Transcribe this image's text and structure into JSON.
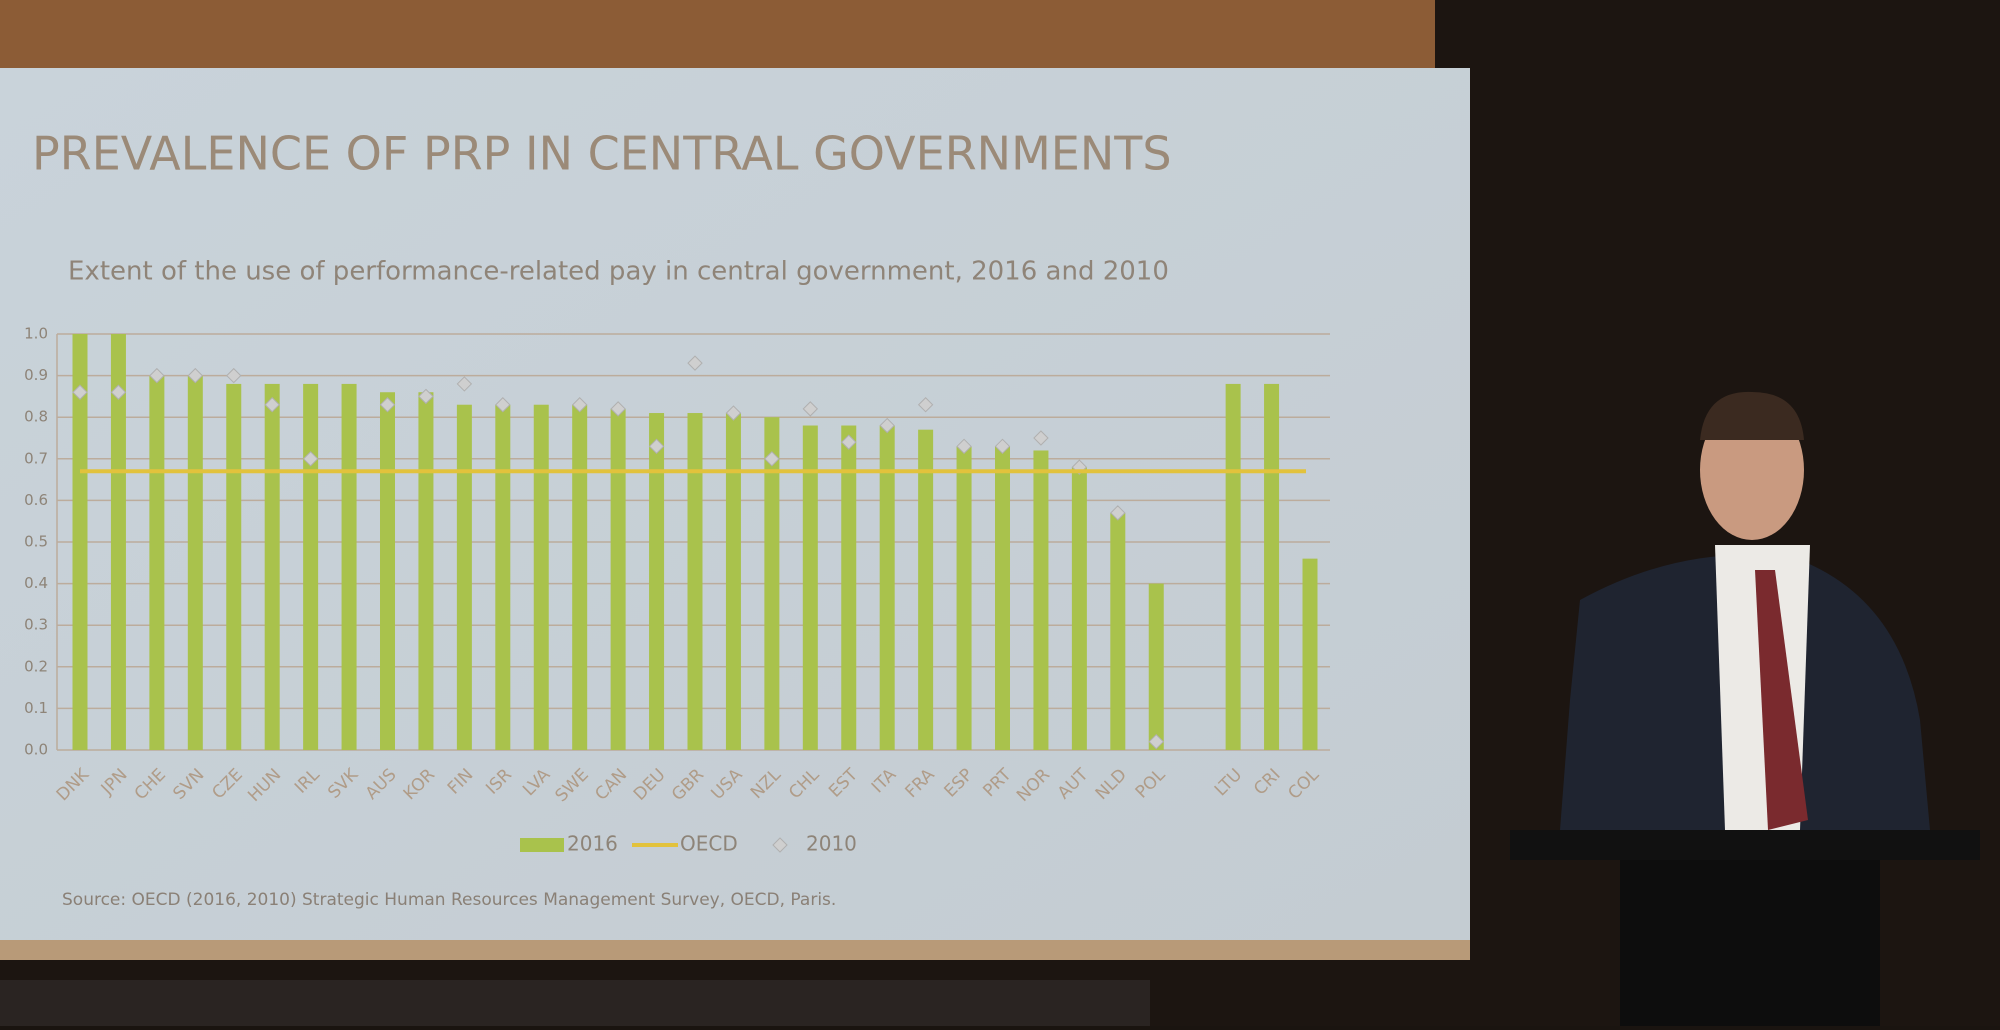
{
  "chart_data": {
    "type": "bar",
    "title": "PREVALENCE OF PRP IN CENTRAL GOVERNMENTS",
    "subtitle": "Extent of the use of performance-related pay in central government, 2016 and 2010",
    "source": "Source: OECD (2016, 2010) Strategic Human Resources Management Survey, OECD, Paris.",
    "categories": [
      "DNK",
      "JPN",
      "CHE",
      "SVN",
      "CZE",
      "HUN",
      "IRL",
      "SVK",
      "AUS",
      "KOR",
      "FIN",
      "ISR",
      "LVA",
      "SWE",
      "CAN",
      "DEU",
      "GBR",
      "USA",
      "NZL",
      "CHL",
      "EST",
      "ITA",
      "FRA",
      "ESP",
      "PRT",
      "NOR",
      "AUT",
      "NLD",
      "POL",
      null,
      "LTU",
      "CRI",
      "COL"
    ],
    "series": [
      {
        "name": "2016",
        "color": "#a9c24c",
        "marker": "bar",
        "values": [
          1.0,
          1.0,
          0.9,
          0.9,
          0.88,
          0.88,
          0.88,
          0.88,
          0.86,
          0.86,
          0.83,
          0.83,
          0.83,
          0.83,
          0.82,
          0.81,
          0.81,
          0.81,
          0.8,
          0.78,
          0.78,
          0.78,
          0.77,
          0.73,
          0.73,
          0.72,
          0.68,
          0.57,
          0.4,
          null,
          0.88,
          0.88,
          0.46
        ]
      },
      {
        "name": "2010",
        "color": "#cfcfcf",
        "marker": "diamond",
        "values": [
          0.86,
          0.86,
          0.9,
          0.9,
          0.9,
          0.83,
          0.7,
          null,
          0.83,
          0.85,
          0.88,
          0.83,
          null,
          0.83,
          0.82,
          0.73,
          0.93,
          0.81,
          0.7,
          0.82,
          0.74,
          0.78,
          0.83,
          0.73,
          0.73,
          0.75,
          0.68,
          0.57,
          0.02,
          null,
          null,
          null,
          null
        ]
      }
    ],
    "reference_line": {
      "name": "OECD",
      "value": 0.67,
      "color": "#e2c23c"
    },
    "ylim": [
      0,
      1
    ],
    "yticks": [
      {
        "value": 0,
        "label": "0.0"
      },
      0.1,
      0.2,
      0.3,
      0.4,
      0.5,
      0.6,
      0.7,
      0.8,
      0.9,
      {
        "value": 1,
        "label": "1.0"
      }
    ],
    "grid": true
  }
}
